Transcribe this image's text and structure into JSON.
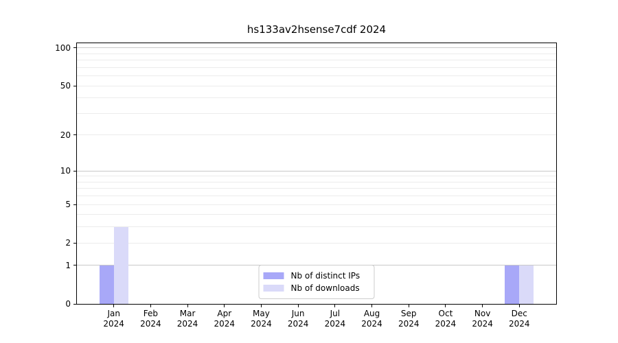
{
  "chart_data": {
    "type": "bar",
    "title": "hs133av2hsense7cdf 2024",
    "categories": [
      "Jan",
      "Feb",
      "Mar",
      "Apr",
      "May",
      "Jun",
      "Jul",
      "Aug",
      "Sep",
      "Oct",
      "Nov",
      "Dec"
    ],
    "year_label": "2024",
    "series": [
      {
        "name": "Nb of distinct IPs",
        "color": "#a8a8f8",
        "values": [
          1,
          0,
          0,
          0,
          0,
          0,
          0,
          0,
          0,
          0,
          0,
          1
        ]
      },
      {
        "name": "Nb of downloads",
        "color": "#dadaf9",
        "values": [
          3,
          0,
          0,
          0,
          0,
          0,
          0,
          0,
          0,
          0,
          0,
          1
        ]
      }
    ],
    "scale": "log10(1+x)",
    "ylim": [
      0,
      109
    ],
    "y_ticks": [
      0,
      1,
      2,
      5,
      10,
      20,
      50,
      100
    ],
    "grid_major_values": [
      1,
      10,
      100
    ],
    "grid_minor_values": [
      2,
      3,
      4,
      5,
      6,
      7,
      8,
      9,
      20,
      30,
      40,
      50,
      60,
      70,
      80,
      90
    ],
    "legend_position": "lower center inside",
    "grid": true,
    "colors": {
      "grid_major": "#c9c9c9",
      "grid_minor": "#ececec",
      "axis": "#000000",
      "text": "#000000",
      "background": "#ffffff"
    }
  }
}
